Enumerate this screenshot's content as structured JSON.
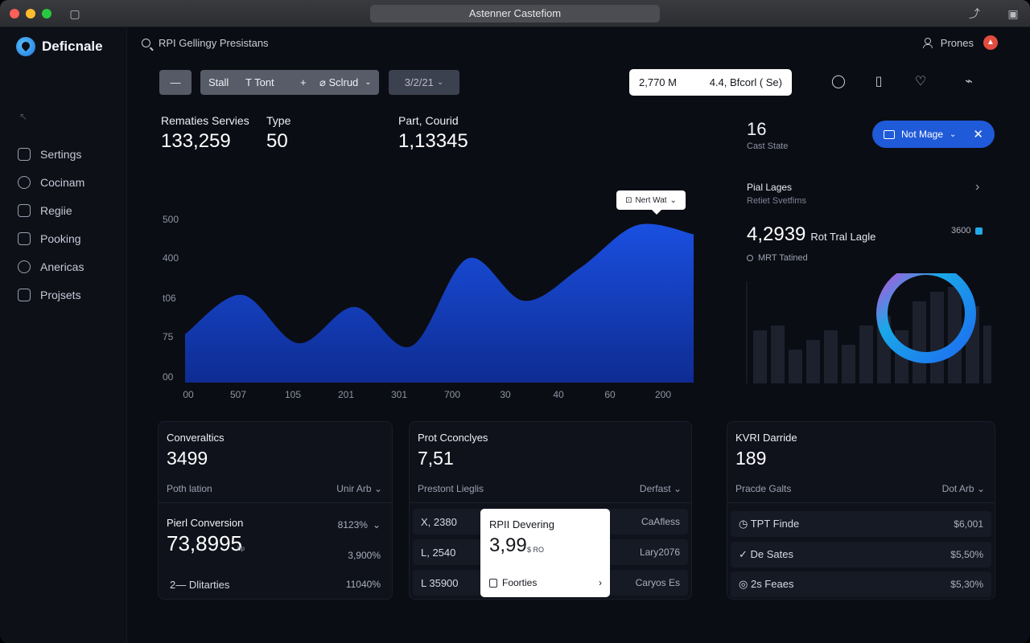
{
  "window": {
    "url": "Astenner Castefiom"
  },
  "brand": {
    "name": "Deficnale"
  },
  "search": {
    "text": "RPI Gellingy Presistans"
  },
  "profile": {
    "name": "Prones"
  },
  "sidebar": {
    "items": [
      {
        "label": "Sertings",
        "icon": "settings-icon"
      },
      {
        "label": "Cocinam",
        "icon": "gauge-icon"
      },
      {
        "label": "Regiie",
        "icon": "document-icon"
      },
      {
        "label": "Pooking",
        "icon": "bag-icon"
      },
      {
        "label": "Anericas",
        "icon": "globe-icon"
      },
      {
        "label": "Projsets",
        "icon": "folder-icon"
      }
    ]
  },
  "toolbar": {
    "dash": "—",
    "group": {
      "a": "Stall",
      "b": "T Tont",
      "c": "+",
      "d": "⌀ Sclrud"
    },
    "date": "3/2/21",
    "stat": {
      "left": "2,770 M",
      "right": "4.4, Bfcorl ( Se)"
    }
  },
  "kpis": [
    {
      "label": "Rematies Servies",
      "value": "133,259"
    },
    {
      "label": "Type",
      "value": "50"
    },
    {
      "label": "Part, Courid",
      "value": "1,13345"
    }
  ],
  "main_chart": {
    "tooltip": "Nert Wat",
    "x_labels": [
      "00",
      "507",
      "105",
      "201",
      "301",
      "700",
      "30",
      "40",
      "60",
      "200"
    ],
    "y_labels": [
      "500",
      "400",
      "t06",
      "75",
      "00"
    ]
  },
  "chart_data": {
    "type": "area",
    "x": [
      "00",
      "507",
      "105",
      "201",
      "301",
      "700",
      "30",
      "40",
      "60",
      "200"
    ],
    "values": [
      80,
      145,
      65,
      125,
      60,
      205,
      135,
      190,
      260,
      245
    ],
    "ylim": [
      0,
      300
    ]
  },
  "right_panel": {
    "count": "16",
    "count_label": "Cast State",
    "mode_button": "Not Mage",
    "title": "Pial Lages",
    "subtitle": "Retiet Svetfims",
    "metric_value": "4,2939",
    "metric_label": "Rot Tral Lagle",
    "metric_right": "3600",
    "tracked": "MRT Tatined",
    "bars": [
      55,
      60,
      35,
      45,
      55,
      40,
      60,
      70,
      55,
      85,
      95,
      100,
      80,
      60
    ]
  },
  "cards": [
    {
      "title": "Converaltics",
      "value": "3499",
      "sub": "Poth lation",
      "drop": "Unir Arb",
      "conv_label": "Pierl Conversion",
      "conv_value": "73,8995",
      "conv_unit": "bp",
      "rows": [
        {
          "label": "",
          "value": "8123%"
        },
        {
          "label": "",
          "value": "3,900%"
        },
        {
          "label": "2— Dlitarties",
          "value": "11040%"
        }
      ]
    },
    {
      "title": "Prot Cconclyes",
      "value": "7,51",
      "sub": "Prestont Lieglis",
      "drop": "Derfast",
      "rows": [
        {
          "label": "X, 2380",
          "value": "CaAfless"
        },
        {
          "label": "L, 2540",
          "value": "Lary2076"
        },
        {
          "label": "L 35900",
          "value": "Caryos Es"
        }
      ],
      "popover": {
        "title": "RPII Devering",
        "value": "3,99",
        "unit": "$ RO",
        "footer": "Foorties"
      }
    },
    {
      "title": "KVRI Darride",
      "value": "189",
      "sub": "Pracde Galts",
      "drop": "Dot Arb",
      "rows": [
        {
          "label": "TPT Finde",
          "value": "$6,001",
          "icon": "clock-icon"
        },
        {
          "label": "De Sates",
          "value": "$5,50%",
          "icon": "chevron-down-icon"
        },
        {
          "label": "2s Feaes",
          "value": "$5,30%",
          "icon": "circle-icon"
        }
      ]
    }
  ],
  "colors": {
    "accent": "#1f5ad8",
    "area": "#1644c9",
    "ring": "#1aa8e8",
    "ring_accent": "#c24fd8"
  }
}
